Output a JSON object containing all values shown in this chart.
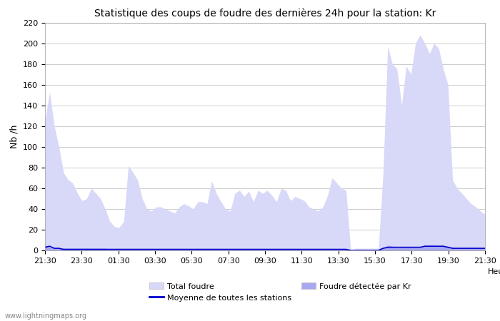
{
  "title": "Statistique des coups de foudre des dernières 24h pour la station: Kr",
  "xlabel": "Heure",
  "ylabel": "Nb /h",
  "ylim": [
    0,
    220
  ],
  "yticks": [
    0,
    20,
    40,
    60,
    80,
    100,
    120,
    140,
    160,
    180,
    200,
    220
  ],
  "x_labels": [
    "21:30",
    "23:30",
    "01:30",
    "03:30",
    "05:30",
    "07:30",
    "09:30",
    "11:30",
    "13:30",
    "15:30",
    "17:30",
    "19:30",
    "21:30"
  ],
  "watermark": "www.lightningmaps.org",
  "legend_items": [
    "Total foudre",
    "Foudre détectée par Kr",
    "Moyenne de toutes les stations"
  ],
  "color_total": "#d8d8f8",
  "color_kr": "#a8a8f0",
  "color_moyenne": "#0000cc",
  "total_foudre": [
    125,
    153,
    120,
    100,
    75,
    68,
    65,
    55,
    48,
    50,
    60,
    55,
    50,
    40,
    28,
    23,
    22,
    28,
    82,
    75,
    68,
    50,
    40,
    38,
    42,
    42,
    40,
    38,
    36,
    42,
    45,
    43,
    40,
    47,
    47,
    45,
    67,
    55,
    47,
    40,
    38,
    55,
    58,
    52,
    57,
    47,
    58,
    55,
    58,
    53,
    47,
    60,
    58,
    48,
    52,
    50,
    48,
    42,
    40,
    38,
    42,
    53,
    70,
    65,
    60,
    58,
    0,
    2,
    2,
    2,
    2,
    2,
    2,
    75,
    197,
    180,
    175,
    140,
    178,
    170,
    200,
    208,
    200,
    190,
    200,
    195,
    175,
    160,
    68,
    60,
    55,
    50,
    45,
    42,
    38,
    35
  ],
  "kr_foudre": [
    5,
    3,
    2,
    2,
    2,
    2,
    2,
    2,
    2,
    2,
    2,
    2,
    2,
    2,
    1,
    1,
    1,
    1,
    1,
    1,
    1,
    1,
    1,
    1,
    1,
    1,
    1,
    1,
    1,
    1,
    1,
    1,
    1,
    1,
    1,
    1,
    1,
    1,
    1,
    1,
    1,
    1,
    1,
    1,
    1,
    1,
    1,
    1,
    1,
    1,
    1,
    1,
    1,
    1,
    1,
    1,
    1,
    1,
    1,
    1,
    1,
    1,
    1,
    1,
    1,
    1,
    0,
    0,
    0,
    0,
    0,
    0,
    0,
    2,
    5,
    4,
    3,
    3,
    3,
    3,
    3,
    3,
    5,
    5,
    5,
    4,
    4,
    4,
    3,
    2,
    2,
    2,
    2,
    2,
    2,
    2
  ],
  "moyenne": [
    3,
    4,
    2,
    2,
    1,
    1,
    1,
    1,
    1,
    1,
    1,
    1,
    1,
    1,
    1,
    1,
    1,
    1,
    1,
    1,
    1,
    1,
    1,
    1,
    1,
    1,
    1,
    1,
    1,
    1,
    1,
    1,
    1,
    1,
    1,
    1,
    1,
    1,
    1,
    1,
    1,
    1,
    1,
    1,
    1,
    1,
    1,
    1,
    1,
    1,
    1,
    1,
    1,
    1,
    1,
    1,
    1,
    1,
    1,
    1,
    1,
    1,
    1,
    1,
    1,
    1,
    0,
    0,
    0,
    0,
    0,
    0,
    0,
    2,
    3,
    3,
    3,
    3,
    3,
    3,
    3,
    3,
    4,
    4,
    4,
    4,
    4,
    3,
    2,
    2,
    2,
    2,
    2,
    2,
    2,
    2
  ],
  "background_color": "#ffffff",
  "plot_bg_color": "#ffffff",
  "grid_color": "#cccccc",
  "title_fontsize": 10,
  "tick_fontsize": 8,
  "label_fontsize": 9
}
